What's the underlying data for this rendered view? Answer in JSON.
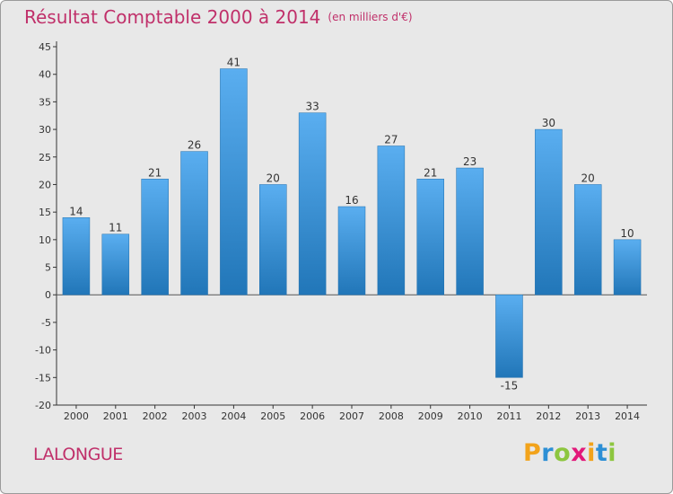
{
  "chart_data": {
    "type": "bar",
    "title": "Résultat Comptable 2000 à 2014",
    "subtitle": "(en milliers d'€)",
    "categories": [
      "2000",
      "2001",
      "2002",
      "2003",
      "2004",
      "2005",
      "2006",
      "2007",
      "2008",
      "2009",
      "2010",
      "2011",
      "2012",
      "2013",
      "2014"
    ],
    "values": [
      14,
      11,
      21,
      26,
      41,
      20,
      33,
      16,
      27,
      21,
      23,
      -15,
      30,
      20,
      10
    ],
    "ylim": [
      -20,
      45
    ],
    "yticks": [
      45,
      40,
      35,
      30,
      25,
      20,
      15,
      10,
      5,
      0,
      -5,
      -10,
      -15,
      -20
    ],
    "xlabel": "",
    "ylabel": "",
    "grid": false,
    "legend": "none",
    "bar_color": "#3a8fd6",
    "bar_color_light": "#5aaef0",
    "bar_color_dark": "#2176b8"
  },
  "commune_label": "LALONGUE",
  "logo": {
    "letters": [
      "P",
      "r",
      "o",
      "x",
      "i",
      "t",
      "i"
    ],
    "colors": [
      "#f2a31b",
      "#2d8fd5",
      "#8dc63f",
      "#e2197a",
      "#f2a31b",
      "#2d8fd5",
      "#8dc63f"
    ]
  },
  "colors": {
    "title": "#c0306a",
    "background": "#e8e8e8"
  }
}
